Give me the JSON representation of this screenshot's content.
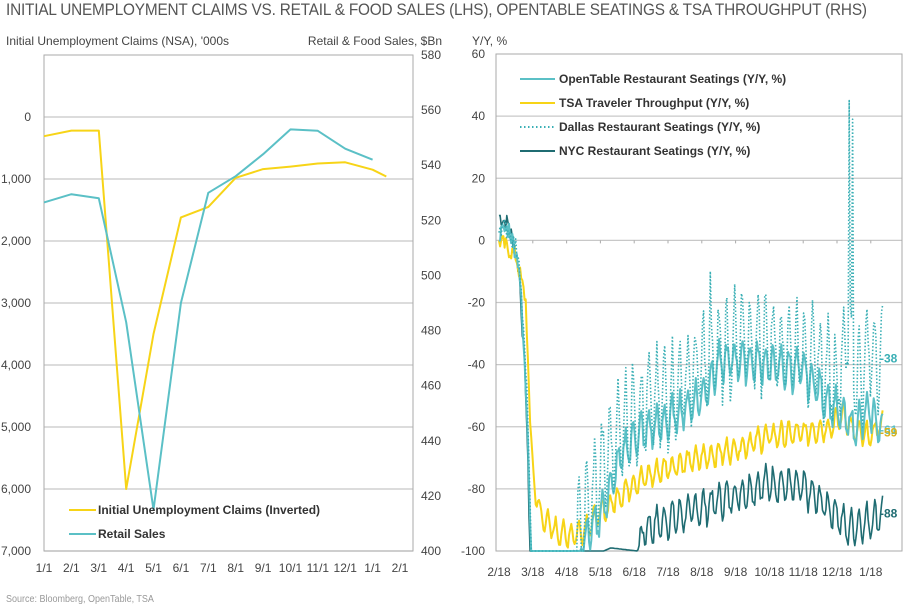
{
  "title": "INITIAL UNEMPLOYMENT CLAIMS VS. RETAIL & FOOD SALES (LHS), OPENTABLE SEATINGS & TSA THROUGHPUT (RHS)",
  "source": "Source: Bloomberg, OpenTable, TSA",
  "colors": {
    "yellow": "#F7D417",
    "teal": "#5BC0C6",
    "dark_teal": "#1F6C72",
    "dallas": "#3AAFB5",
    "grid": "#c8c8c8",
    "frame": "#aaaaaa",
    "label_59": "#D9B21A"
  },
  "chart_data": [
    {
      "type": "line",
      "title": "Initial Unemployment Claims vs. Retail & Food Sales",
      "ylabel_left": "Initial Unemployment Claims (NSA), '000s",
      "ylabel_right": "Retail & Food Sales, $Bn",
      "ylim_left": [
        7000,
        -1000
      ],
      "ylim_right": [
        400,
        580
      ],
      "left_inverted": true,
      "yticks_left": [
        "0",
        "1,000",
        "2,000",
        "3,000",
        "4,000",
        "5,000",
        "6,000",
        "7,000"
      ],
      "yticks_left_values": [
        0,
        1000,
        2000,
        3000,
        4000,
        5000,
        6000,
        7000
      ],
      "yticks_right": [
        "580",
        "560",
        "540",
        "520",
        "500",
        "480",
        "460",
        "440",
        "420",
        "400"
      ],
      "yticks_right_values": [
        580,
        560,
        540,
        520,
        500,
        480,
        460,
        440,
        420,
        400
      ],
      "xticks": [
        "1/1",
        "2/1",
        "3/1",
        "4/1",
        "5/1",
        "6/1",
        "7/1",
        "8/1",
        "9/1",
        "10/1",
        "11/1",
        "12/1",
        "1/1",
        "2/1"
      ],
      "grid": true,
      "legend_position": "bottom-left",
      "series": [
        {
          "name": "Initial Unemployment Claims (Inverted)",
          "axis": "left",
          "color_key": "yellow",
          "x": [
            0,
            1,
            2,
            3,
            4,
            5,
            6,
            7,
            8,
            9,
            10,
            11,
            12,
            12.5
          ],
          "values": [
            310,
            220,
            220,
            6000,
            3500,
            1620,
            1450,
            980,
            840,
            800,
            750,
            730,
            850,
            960
          ]
        },
        {
          "name": "Retail Sales",
          "axis": "right",
          "color_key": "teal",
          "x": [
            0,
            1,
            2,
            3,
            4,
            5,
            6,
            7,
            8,
            9,
            10,
            11,
            12
          ],
          "values": [
            526.5,
            529.5,
            528,
            483,
            415,
            490,
            530,
            536,
            544,
            553,
            552.5,
            546,
            542
          ]
        }
      ]
    },
    {
      "type": "line",
      "title": "OpenTable Seatings & TSA Throughput",
      "ylabel": "Y/Y, %",
      "ylim": [
        -100,
        60
      ],
      "yticks": [
        "60",
        "40",
        "20",
        "0",
        "-20",
        "-40",
        "-60",
        "-80",
        "-100"
      ],
      "yticks_values": [
        60,
        40,
        20,
        0,
        -20,
        -40,
        -60,
        -80,
        -100
      ],
      "xticks": [
        "2/18",
        "3/18",
        "4/18",
        "5/18",
        "6/18",
        "7/18",
        "8/18",
        "9/18",
        "10/18",
        "11/18",
        "12/18",
        "1/18"
      ],
      "x_months": 11.35,
      "grid": true,
      "legend_position": "top-left",
      "series": [
        {
          "name": "OpenTable Restaurant Seatings (Y/Y, %)",
          "color_key": "teal",
          "style": "solid",
          "end_label": "-61",
          "end_value": -61,
          "anchors": [
            [
              0,
              2
            ],
            [
              0.3,
              4
            ],
            [
              0.6,
              -8
            ],
            [
              0.85,
              -60
            ],
            [
              0.95,
              -100
            ],
            [
              2.4,
              -100
            ],
            [
              2.6,
              -95
            ],
            [
              3.0,
              -88
            ],
            [
              3.3,
              -80
            ],
            [
              3.6,
              -70
            ],
            [
              4.0,
              -63
            ],
            [
              5.0,
              -58
            ],
            [
              6.0,
              -50
            ],
            [
              6.5,
              -40
            ],
            [
              7.0,
              -38
            ],
            [
              8.0,
              -40
            ],
            [
              9.0,
              -42
            ],
            [
              10.0,
              -55
            ],
            [
              10.5,
              -60
            ],
            [
              11.0,
              -55
            ],
            [
              11.3,
              -61
            ]
          ],
          "weekly_amplitude": 6
        },
        {
          "name": "TSA Traveler Throughput (Y/Y, %)",
          "color_key": "yellow",
          "style": "solid",
          "end_label": "-59",
          "end_value": -59,
          "anchors": [
            [
              0,
              0
            ],
            [
              0.5,
              -5
            ],
            [
              0.8,
              -20
            ],
            [
              0.9,
              -55
            ],
            [
              1.0,
              -75
            ],
            [
              1.2,
              -88
            ],
            [
              1.6,
              -93
            ],
            [
              2.0,
              -95
            ],
            [
              2.4,
              -94
            ],
            [
              3.0,
              -88
            ],
            [
              3.5,
              -83
            ],
            [
              4.0,
              -78
            ],
            [
              5.0,
              -73
            ],
            [
              6.0,
              -70
            ],
            [
              7.0,
              -67
            ],
            [
              8.0,
              -63
            ],
            [
              9.0,
              -62
            ],
            [
              9.8,
              -60
            ],
            [
              10.2,
              -56
            ],
            [
              10.5,
              -62
            ],
            [
              11.0,
              -63
            ],
            [
              11.3,
              -59
            ]
          ],
          "weekly_amplitude": 3.5
        },
        {
          "name": "Dallas Restaurant Seatings (Y/Y, %)",
          "color_key": "dallas",
          "style": "dotted",
          "end_label": "-38",
          "end_value": -38,
          "anchors": [
            [
              0,
              5
            ],
            [
              0.3,
              3
            ],
            [
              0.6,
              -5
            ],
            [
              0.85,
              -55
            ],
            [
              0.95,
              -100
            ],
            [
              2.2,
              -100
            ],
            [
              2.5,
              -90
            ],
            [
              3.0,
              -75
            ],
            [
              3.5,
              -62
            ],
            [
              4.0,
              -55
            ],
            [
              5.0,
              -50
            ],
            [
              6.0,
              -40
            ],
            [
              7.0,
              -33
            ],
            [
              8.0,
              -32
            ],
            [
              9.0,
              -35
            ],
            [
              10.0,
              -45
            ],
            [
              10.3,
              -30
            ],
            [
              10.6,
              -45
            ],
            [
              11.0,
              -35
            ],
            [
              11.3,
              -38
            ]
          ],
          "weekly_amplitude": 14,
          "spikes": [
            [
              10.35,
              45
            ],
            [
              10.45,
              39
            ],
            [
              6.25,
              -10
            ]
          ]
        },
        {
          "name": "NYC Restaurant Seatings (Y/Y, %)",
          "color_key": "dark_teal",
          "style": "solid",
          "end_label": "-88",
          "end_value": -88,
          "anchors": [
            [
              0,
              8
            ],
            [
              0.3,
              5
            ],
            [
              0.6,
              -10
            ],
            [
              0.8,
              -50
            ],
            [
              0.92,
              -100
            ],
            [
              3.1,
              -100
            ],
            [
              3.3,
              -99
            ],
            [
              4.1,
              -100
            ],
            [
              4.3,
              -93
            ],
            [
              5.0,
              -90
            ],
            [
              6.0,
              -86
            ],
            [
              7.0,
              -82
            ],
            [
              8.0,
              -78
            ],
            [
              9.0,
              -80
            ],
            [
              10.0,
              -88
            ],
            [
              10.3,
              -93
            ],
            [
              11.0,
              -90
            ],
            [
              11.3,
              -88
            ]
          ],
          "weekly_amplitude": 5
        }
      ]
    }
  ]
}
